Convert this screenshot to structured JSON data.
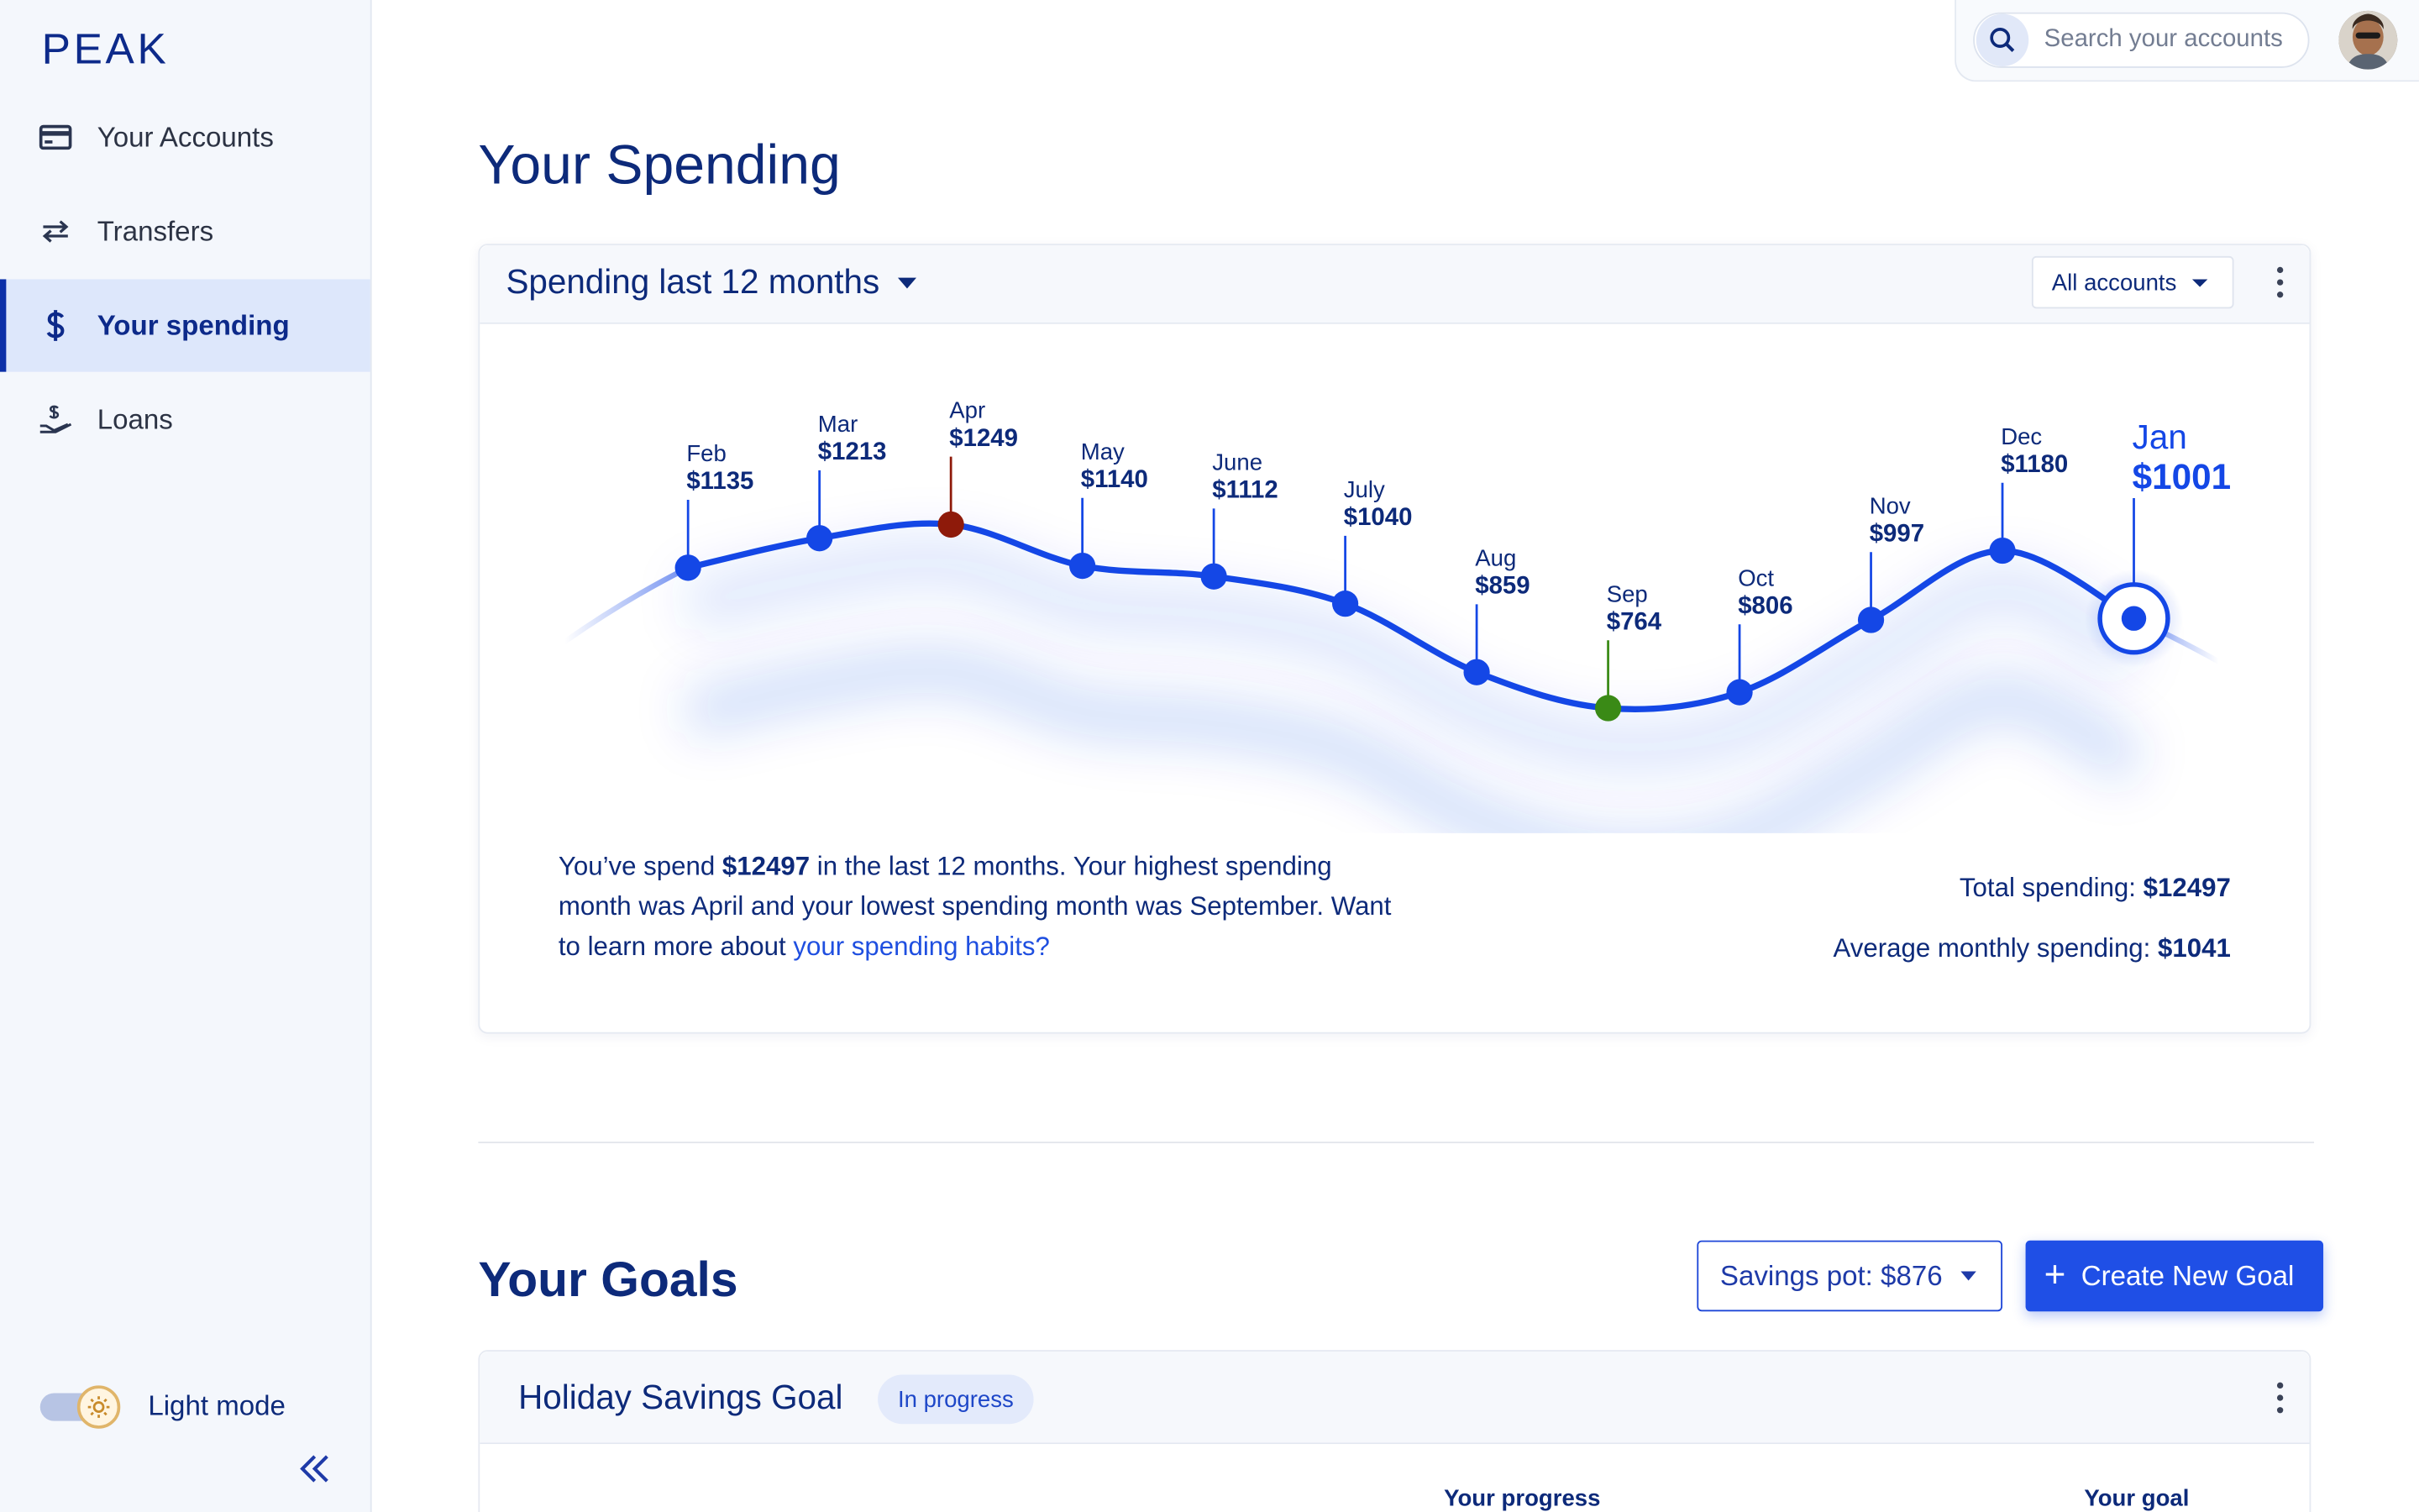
{
  "app": {
    "logo": "PEAK"
  },
  "sidebar": {
    "items": [
      {
        "label": "Your Accounts",
        "icon": "credit-card-icon"
      },
      {
        "label": "Transfers",
        "icon": "transfer-arrows-icon"
      },
      {
        "label": "Your spending",
        "icon": "dollar-icon",
        "active": true
      },
      {
        "label": "Loans",
        "icon": "hand-coin-icon"
      }
    ],
    "theme_label": "Light mode",
    "theme_on": true
  },
  "header": {
    "search_placeholder": "Search your accounts"
  },
  "page": {
    "title": "Your Spending"
  },
  "spending": {
    "period_label": "Spending last 12 months",
    "account_filter": "All accounts",
    "summary": {
      "pre": "You’ve spend ",
      "amount": "$12497",
      "mid": " in the last 12 months. Your highest spending month was April and your lowest spending month was September. Want to learn more about ",
      "link": "your spending habits?"
    },
    "total_label": "Total spending: ",
    "total_value": "$12497",
    "average_label": "Average monthly spending: ",
    "average_value": "$1041"
  },
  "chart_data": {
    "type": "line",
    "x": [
      "Feb",
      "Mar",
      "Apr",
      "May",
      "June",
      "July",
      "Aug",
      "Sep",
      "Oct",
      "Nov",
      "Dec",
      "Jan"
    ],
    "labels": [
      "$1135",
      "$1213",
      "$1249",
      "$1140",
      "$1112",
      "$1040",
      "$859",
      "$764",
      "$806",
      "$997",
      "$1180",
      "$1001"
    ],
    "series": [
      {
        "values": [
          1135,
          1213,
          1249,
          1140,
          1112,
          1040,
          859,
          764,
          806,
          997,
          1180,
          1001
        ]
      }
    ],
    "highest": "Apr",
    "lowest": "Sep",
    "current": "Jan",
    "colors": {
      "line": "#1447e6",
      "high": "#8e1a0a",
      "low": "#3a8a16"
    }
  },
  "goals": {
    "title": "Your Goals",
    "savings_pot": "Savings pot: $876",
    "create_label": "Create New Goal",
    "card": {
      "name": "Holiday Savings Goal",
      "status": "In progress",
      "progress_label": "Your progress",
      "goal_label": "Your goal"
    }
  }
}
